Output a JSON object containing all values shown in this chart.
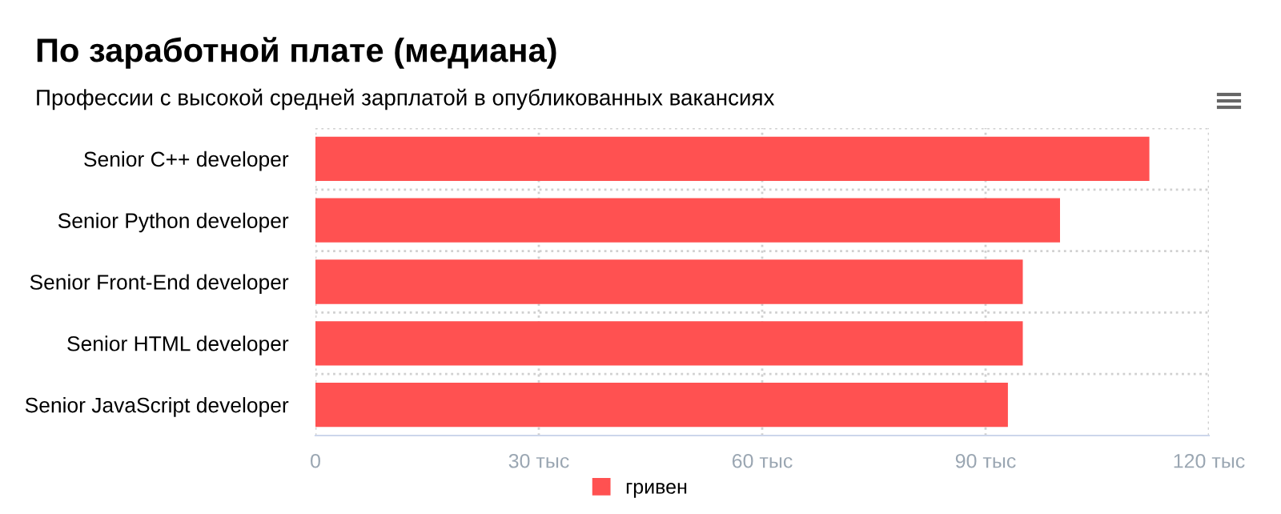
{
  "chart_data": {
    "type": "bar",
    "orientation": "horizontal",
    "title": "По заработной плате (медиана)",
    "subtitle": "Профессии с высокой средней зарплатой в опубликованных вакансиях",
    "categories": [
      "Senior C++ developer",
      "Senior Python developer",
      "Senior Front-End developer",
      "Senior HTML developer",
      "Senior JavaScript developer"
    ],
    "series": [
      {
        "name": "гривен",
        "color": "#ff5151",
        "values": [
          112,
          100,
          95,
          95,
          93
        ]
      }
    ],
    "xlim": [
      0,
      120
    ],
    "xticks": [
      0,
      {
        "value": 30,
        "label": "30 тыс"
      },
      {
        "value": 60,
        "label": "60 тыс"
      },
      {
        "value": 90,
        "label": "90 тыс"
      },
      {
        "value": 120,
        "label": "120 тыс"
      }
    ],
    "grid": true,
    "legend": "bottom"
  }
}
